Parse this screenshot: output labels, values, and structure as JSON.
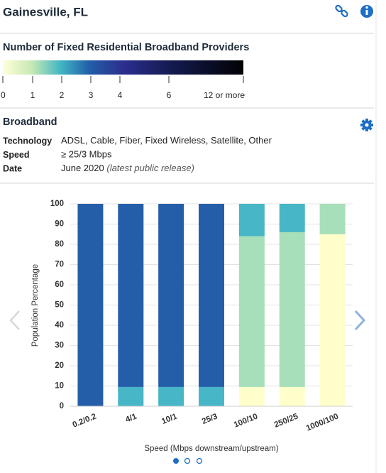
{
  "header": {
    "title": "Gainesville, FL"
  },
  "provider_legend": {
    "title": "Number of Fixed Residential Broadband Providers",
    "ticks": [
      "0",
      "1",
      "2",
      "3",
      "4",
      "6",
      "12 or more"
    ]
  },
  "section": {
    "title": "Broadband",
    "rows": [
      {
        "label": "Technology",
        "value": "ADSL, Cable, Fiber, Fixed Wireless, Satellite, Other"
      },
      {
        "label": "Speed",
        "value": "≥ 25/3 Mbps"
      },
      {
        "label": "Date",
        "value": "June 2020",
        "note": "(latest public release)"
      }
    ]
  },
  "chart_data": {
    "type": "stacked_bar",
    "ylabel": "Population Percentage",
    "xlabel": "Speed (Mbps downstream/upstream)",
    "categories": [
      "0.2/0.2",
      "4/1",
      "10/1",
      "25/3",
      "100/10",
      "250/25",
      "1000/100"
    ],
    "series": [
      {
        "color": "#ffffcc",
        "values": [
          0,
          0,
          0,
          0,
          9.5,
          9.5,
          85
        ]
      },
      {
        "color": "#a6dfb9",
        "values": [
          0,
          0,
          0,
          0,
          74.5,
          76.5,
          15
        ]
      },
      {
        "color": "#47b6c7",
        "values": [
          0,
          9.5,
          9.5,
          9.5,
          16,
          14,
          0
        ]
      },
      {
        "color": "#245ea9",
        "values": [
          100,
          90.5,
          90.5,
          90.5,
          0,
          0,
          0
        ]
      }
    ],
    "ylim": [
      0,
      100
    ],
    "yticks": [
      0,
      10,
      20,
      30,
      40,
      50,
      60,
      70,
      80,
      90,
      100
    ],
    "grid": true
  }
}
